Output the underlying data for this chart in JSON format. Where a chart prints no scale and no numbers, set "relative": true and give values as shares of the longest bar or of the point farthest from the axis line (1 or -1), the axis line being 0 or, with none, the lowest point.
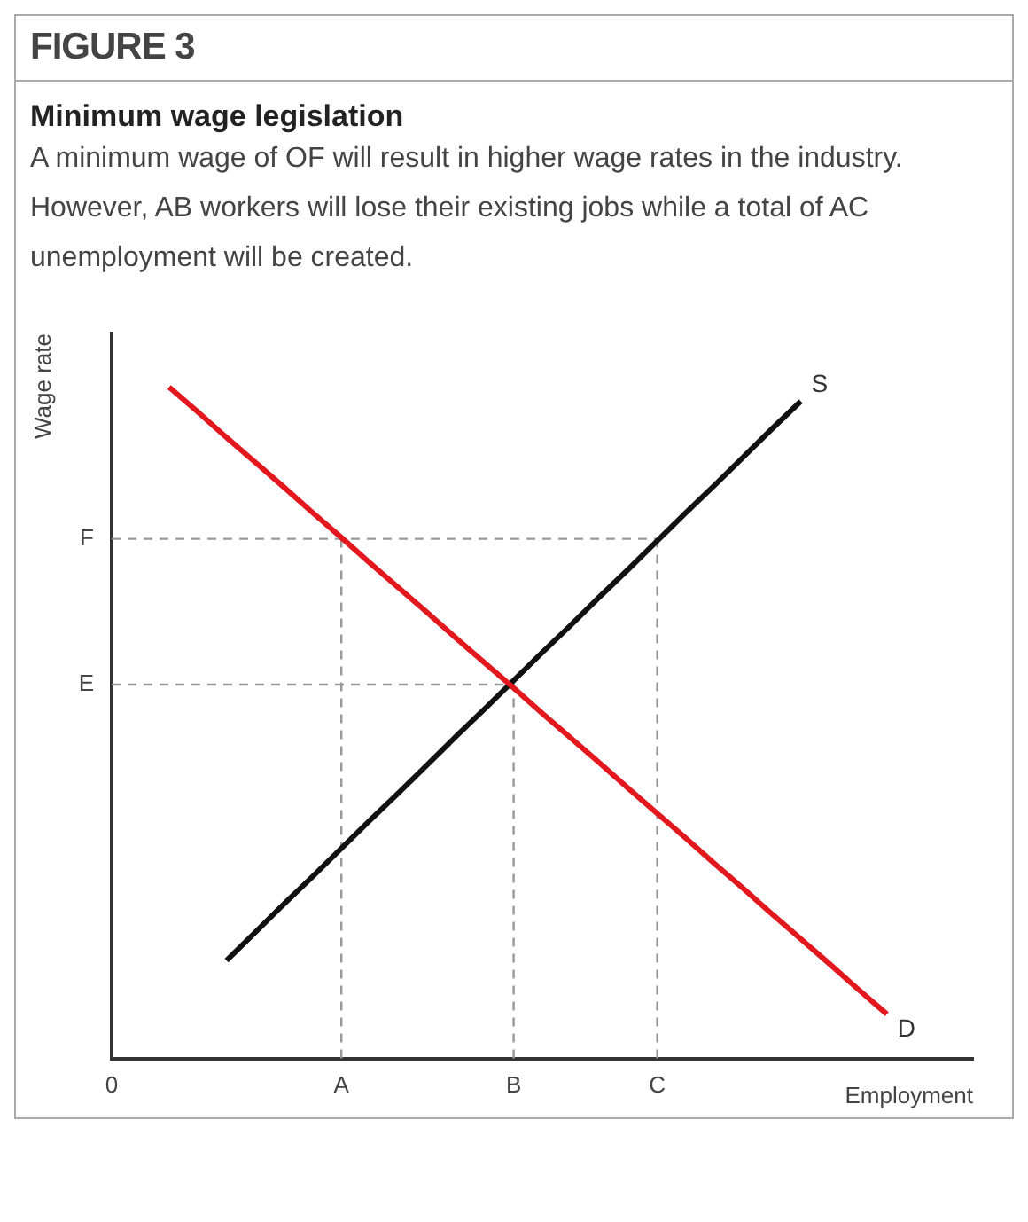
{
  "chart_data": {
    "type": "line",
    "title": "Minimum wage legislation",
    "subtitle": "A minimum wage of OF will result in higher wage rates in the industry. However, AB workers will lose their existing jobs while a total of AC unemployment will be created.",
    "annotations": [
      "FIGURE 3"
    ],
    "xlabel": "Employment",
    "ylabel": "Wage rate",
    "relative": true,
    "categories": [
      "0",
      null,
      null,
      null,
      null,
      null,
      null,
      null,
      "A",
      null,
      null,
      null,
      null,
      null,
      "B",
      null,
      null,
      null,
      null,
      "C",
      null,
      null,
      null,
      null,
      null,
      null,
      null,
      null,
      null,
      null,
      null
    ],
    "grid": false,
    "legend": false,
    "marker": "none",
    "line_style": "solid",
    "ref_lines": [
      {
        "axis": "y",
        "value": 0.774,
        "label": "F",
        "color": "#999999",
        "line_style": "dashed"
      },
      {
        "axis": "y",
        "value": 0.557,
        "label": "E",
        "color": "#999999",
        "line_style": "dashed"
      },
      {
        "axis": "x",
        "value": "A",
        "color": "#999999",
        "line_style": "dashed"
      },
      {
        "axis": "x",
        "value": "B",
        "color": "#999999",
        "line_style": "dashed"
      },
      {
        "axis": "x",
        "value": "C",
        "color": "#999999",
        "line_style": "dashed"
      }
    ],
    "series": [
      {
        "name": "D",
        "color": "#e3171e",
        "values": [
          null,
          null,
          1.0,
          0.963,
          0.925,
          0.888,
          0.851,
          0.813,
          0.776,
          0.738,
          0.701,
          0.664,
          0.626,
          0.589,
          0.552,
          0.514,
          0.477,
          0.44,
          0.402,
          0.365,
          0.328,
          0.29,
          0.253,
          0.215,
          0.178,
          0.141,
          0.103,
          0.066,
          null,
          null,
          null
        ]
      },
      {
        "name": "S",
        "color": "#111111",
        "values": [
          null,
          null,
          null,
          null,
          0.146,
          0.188,
          0.23,
          0.271,
          0.313,
          0.355,
          0.396,
          0.438,
          0.48,
          0.521,
          0.563,
          0.605,
          0.646,
          0.688,
          0.729,
          0.771,
          0.813,
          0.854,
          0.896,
          0.938,
          0.979,
          null,
          null,
          null,
          null,
          null,
          null
        ]
      }
    ]
  }
}
